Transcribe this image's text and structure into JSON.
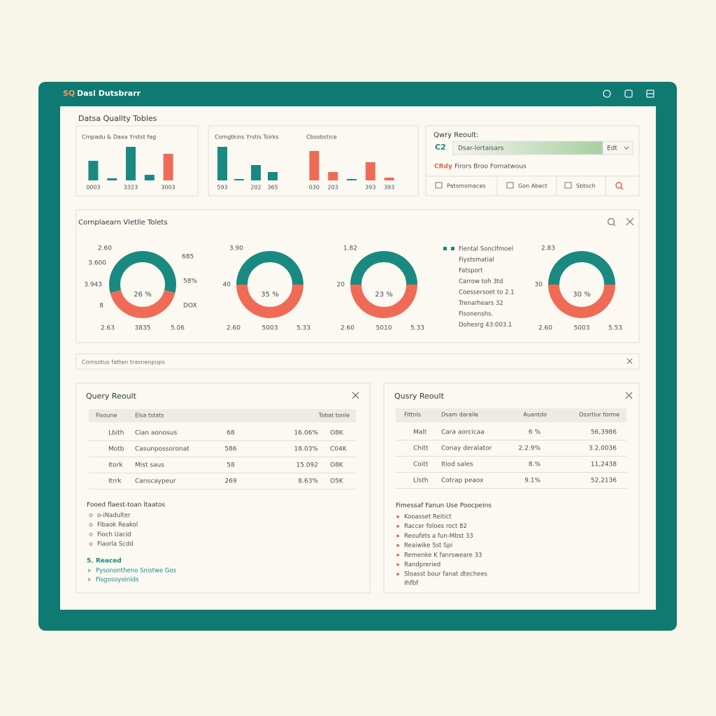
{
  "window": {
    "title_prefix": "SQ",
    "title": "Dasl Dutsbrarr"
  },
  "quality": {
    "title": "Datsa Quallty Tobles"
  },
  "chart_data": [
    {
      "type": "bar",
      "title": "Cmpadu & Daxa Yrstst fag",
      "categories": [
        "0003",
        null,
        "3323",
        null,
        "3003"
      ],
      "values": [
        28,
        3,
        48,
        8,
        38
      ],
      "colors": [
        "#1a8a80",
        "#1a8a80",
        "#1a8a80",
        "#1a8a80",
        "#f06b55"
      ],
      "ylim": [
        0,
        55
      ]
    },
    {
      "type": "bar",
      "title": "Comgtkins Yrstis Tsirks",
      "categories": [
        "593",
        null,
        "202",
        "365"
      ],
      "values": [
        48,
        2,
        22,
        12
      ],
      "colors": [
        "#1a8a80",
        "#1a8a80",
        "#1a8a80",
        "#1a8a80"
      ],
      "ylim": [
        0,
        55
      ]
    },
    {
      "type": "bar",
      "title": "Cbsobstice",
      "categories": [
        "030",
        "203",
        null,
        "393",
        "393"
      ],
      "values": [
        42,
        12,
        2,
        26,
        4
      ],
      "colors": [
        "#f06b55",
        "#f06b55",
        "#1a8a80",
        "#f06b55",
        "#f06b55"
      ],
      "ylim": [
        0,
        55
      ]
    },
    {
      "type": "donut",
      "center_label": "26 %",
      "values": [
        58,
        42
      ],
      "colors": [
        "#1a8a80",
        "#f06b55"
      ],
      "annotations": [
        "2.60",
        "3.600",
        "3.943",
        "8",
        "685",
        "58%",
        "DOX",
        "2.63",
        "3835",
        "5.06"
      ]
    },
    {
      "type": "donut",
      "center_label": "35 %",
      "values": [
        50,
        50
      ],
      "colors": [
        "#1a8a80",
        "#f06b55"
      ],
      "annotations": [
        "3.90",
        "40",
        "2.60",
        "5003",
        "5.33"
      ]
    },
    {
      "type": "donut",
      "center_label": "23 %",
      "values": [
        50,
        50
      ],
      "colors": [
        "#1a8a80",
        "#f06b55"
      ],
      "annotations": [
        "1.82",
        "20",
        "2.60",
        "5010",
        "5.33"
      ]
    },
    {
      "type": "donut",
      "center_label": "30 %",
      "values": [
        50,
        50
      ],
      "colors": [
        "#1a8a80",
        "#f06b55"
      ],
      "annotations": [
        "2.83",
        "30",
        "2.60",
        "5003",
        "5.53"
      ]
    }
  ],
  "query_card": {
    "title": "Qwry Reoult:",
    "prefix": "C2",
    "input": "Dsar-lortaisars",
    "dropdown": "Edt",
    "status_tag": "CRdy",
    "status": "Firors Broo Fornatwous",
    "buttons": [
      "Patomsmaces",
      "Gon Abect",
      "Sbtoch"
    ]
  },
  "compliance": {
    "title": "Cornplaearn Vletlle Tolets",
    "legend": [
      "Fiental Sonclfmoel",
      "Fiystsmatial",
      "Fatsport",
      "Carrow toh 3td",
      "Coessersoet to 2.1",
      "Trenarhears 32",
      "Fisonenshs.",
      "Dohesrg 43:003.1"
    ]
  },
  "notice": "Comsotus fatten trasnenpups",
  "left_panel": {
    "title": "Query Reoult",
    "columns": [
      "Fisoune",
      "Elsa tstats",
      "Tobat tonle"
    ],
    "rows": [
      [
        "Lbith",
        "Cian aonosus",
        "68",
        "16.06%",
        "O8K"
      ],
      [
        "Motb",
        "Casunpossoronat",
        "586",
        "18.03%",
        "C04K"
      ],
      [
        "Itork",
        "Mist saus",
        "58",
        "15.092",
        "O8K"
      ],
      [
        "Itrrk",
        "Canscaypeur",
        "269",
        "8.63%",
        "O5K"
      ]
    ],
    "list_title": "Fooed flaest-toan ltaatos",
    "list": [
      "o-iNadulter",
      "Fibaok Reakol",
      "Fioch Uacid",
      "Fiaorla Scdd"
    ],
    "footer_title": "5. Reaced",
    "footer_list": [
      "Pysonontheno Snistwe Gos",
      "Fisgosoyoinids"
    ]
  },
  "right_panel": {
    "title": "Qusry Reoult",
    "columns": [
      "Fittnls",
      "Dsam daraile",
      "Auantdo",
      "Dssrtiur forme"
    ],
    "rows": [
      [
        "Malt",
        "Cara aorcicaa",
        "6 %",
        "56,3986"
      ],
      [
        "Chitt",
        "Conay deralator",
        "2.2.9%",
        "3.2,0036"
      ],
      [
        "Coitt",
        "Itiod sales",
        "8.%",
        "11,2438"
      ],
      [
        "Llsth",
        "Cotrap peaox",
        "9.1%",
        "52,2136"
      ]
    ],
    "list_title": "Fimessaf Fanun Use Poocpeins",
    "list": [
      "Kooasset Reitict",
      "Raccer foloes roct 82",
      "Reoufets a fun-Mbst 33",
      "Reaiwike Sst Spi",
      "Remenke K fanrsweare 33",
      "Randpreried",
      "Sloasst bour fanat dtechees"
    ],
    "footer": "Ihfbf"
  }
}
